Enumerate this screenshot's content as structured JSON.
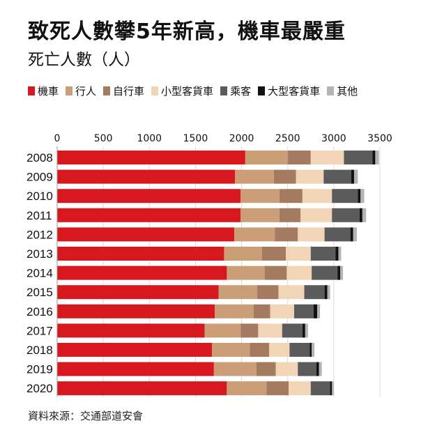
{
  "title": "致死人數攀5年新高，機車最嚴重",
  "subtitle": "死亡人數（人）",
  "source": "資料來源：交通部道安會",
  "chart_data": {
    "type": "bar",
    "orientation": "horizontal",
    "stacked": true,
    "categories": [
      "2008",
      "2009",
      "2010",
      "2011",
      "2012",
      "2013",
      "2014",
      "2015",
      "2016",
      "2017",
      "2018",
      "2019",
      "2020"
    ],
    "xlim": [
      0,
      3500
    ],
    "xticks": [
      0,
      500,
      1000,
      1500,
      2000,
      2500,
      3000,
      3500
    ],
    "grid": true,
    "legend_position": "top",
    "series": [
      {
        "name": "機車",
        "color": "#d7191f",
        "values": [
          2040,
          1930,
          1990,
          1990,
          1920,
          1810,
          1840,
          1750,
          1710,
          1600,
          1680,
          1700,
          1840
        ]
      },
      {
        "name": "行人",
        "color": "#cc9e77",
        "values": [
          460,
          420,
          420,
          420,
          440,
          410,
          410,
          420,
          420,
          390,
          410,
          460,
          430
        ]
      },
      {
        "name": "自行車",
        "color": "#a47a61",
        "values": [
          250,
          240,
          250,
          230,
          250,
          260,
          240,
          230,
          180,
          190,
          210,
          210,
          240
        ]
      },
      {
        "name": "小型客貨車",
        "color": "#f2d4b6",
        "values": [
          360,
          300,
          320,
          340,
          290,
          270,
          270,
          280,
          260,
          260,
          220,
          240,
          240
        ]
      },
      {
        "name": "乘客",
        "color": "#5b5b5b",
        "values": [
          310,
          300,
          280,
          300,
          280,
          270,
          280,
          220,
          210,
          220,
          220,
          200,
          210
        ]
      },
      {
        "name": "大型客貨車",
        "color": "#111111",
        "values": [
          30,
          30,
          30,
          30,
          30,
          30,
          30,
          30,
          40,
          30,
          20,
          30,
          20
        ]
      },
      {
        "name": "其他",
        "color": "#b3b3b3",
        "values": [
          40,
          40,
          40,
          40,
          40,
          30,
          30,
          30,
          30,
          30,
          30,
          30,
          20
        ]
      }
    ]
  }
}
